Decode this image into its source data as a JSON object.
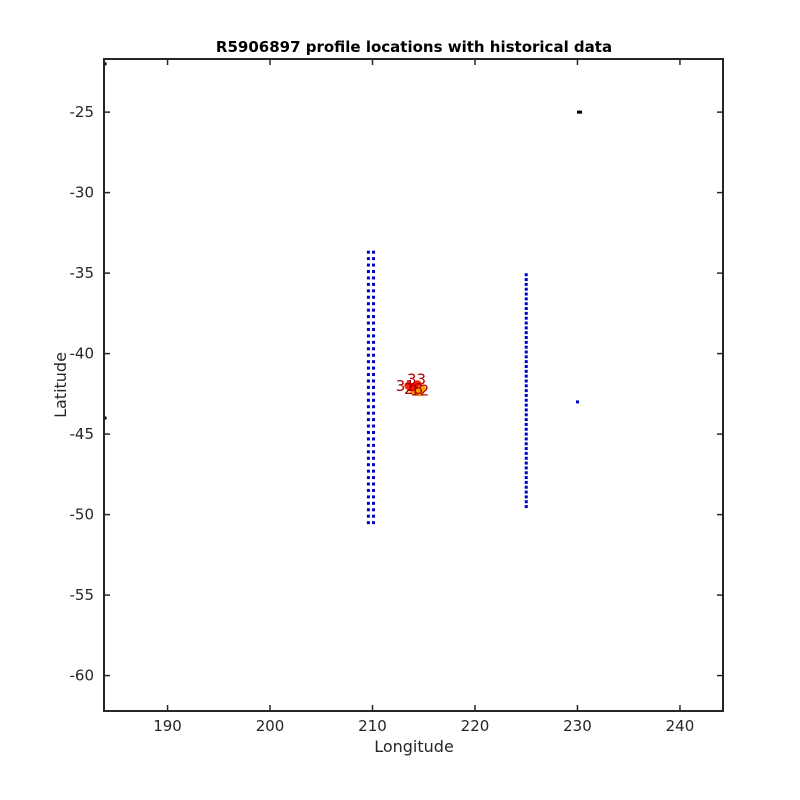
{
  "chart_data": {
    "type": "scatter",
    "title": "R5906897 profile locations with historical data",
    "xlabel": "Longitude",
    "ylabel": "Latitude",
    "xlim": [
      183.8,
      244.2
    ],
    "ylim": [
      -62.2,
      -21.7
    ],
    "xticks": [
      190,
      200,
      210,
      220,
      230,
      240
    ],
    "yticks": [
      -25,
      -30,
      -35,
      -40,
      -45,
      -50,
      -55,
      -60
    ],
    "grid": false,
    "colors": {
      "historical_blue": "#0000cc",
      "profile_marker": "#ff2200",
      "profile_marker_alt": "#ffa500",
      "profile_label": "#b00000",
      "black_points": "#000000",
      "axis": "#262626"
    },
    "series": [
      {
        "type": "column",
        "x": [
          209.6,
          210.1
        ],
        "y_start": -50.5,
        "y_end": -33.5,
        "y_step": 0.4,
        "color": "#0000cc"
      },
      {
        "type": "column",
        "x": [
          225.0
        ],
        "y_start": -49.5,
        "y_end": -35.0,
        "y_step": 0.3,
        "color": "#0000cc"
      },
      {
        "type": "points",
        "x": [
          230.0
        ],
        "y": [
          -43.0
        ],
        "color": "#0000cc"
      },
      {
        "type": "points",
        "x": [
          230.1,
          230.3,
          183.9,
          183.9
        ],
        "y": [
          -25.0,
          -25.0,
          -22.0,
          -44.0
        ],
        "color": "#000000"
      },
      {
        "type": "profiles",
        "x": [
          213.5,
          214.0,
          214.4,
          214.8,
          213.9,
          214.6
        ],
        "y": [
          -42.0,
          -42.3,
          -41.9,
          -42.2,
          -42.1,
          -42.4
        ],
        "color": "#ff2200"
      }
    ],
    "annotations": [
      {
        "text": "33",
        "x": 214.3,
        "y": -41.6
      },
      {
        "text": "31",
        "x": 213.2,
        "y": -42.0
      },
      {
        "text": "28",
        "x": 214.0,
        "y": -42.2
      },
      {
        "text": "12",
        "x": 214.6,
        "y": -42.3
      }
    ]
  }
}
